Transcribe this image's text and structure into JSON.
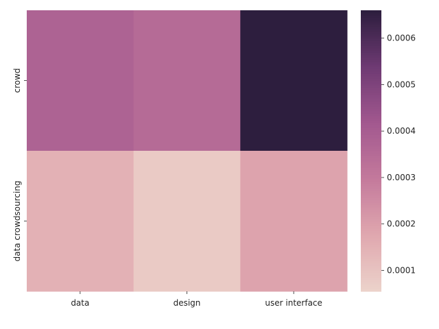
{
  "chart_data": {
    "type": "heatmap",
    "title": "",
    "xlabel": "",
    "ylabel": "",
    "x_categories": [
      "data",
      "design",
      "user interface"
    ],
    "y_categories": [
      "crowd",
      "data crowdsourcing"
    ],
    "values": [
      [
        0.00038,
        0.00035,
        0.00066
      ],
      [
        0.00015,
        8e-05,
        0.00019
      ]
    ],
    "colorbar": {
      "range": [
        5.5e-05,
        0.00066
      ],
      "ticks": [
        0.0001,
        0.0002,
        0.0003,
        0.0004,
        0.0005,
        0.0006
      ],
      "tick_labels": [
        "0.0001",
        "0.0002",
        "0.0003",
        "0.0004",
        "0.0005",
        "0.0006"
      ],
      "colormap_stops": [
        "#ecd3cb",
        "#e0a8af",
        "#c47a9c",
        "#a2588f",
        "#6e3a73",
        "#2d1e3e"
      ]
    }
  }
}
